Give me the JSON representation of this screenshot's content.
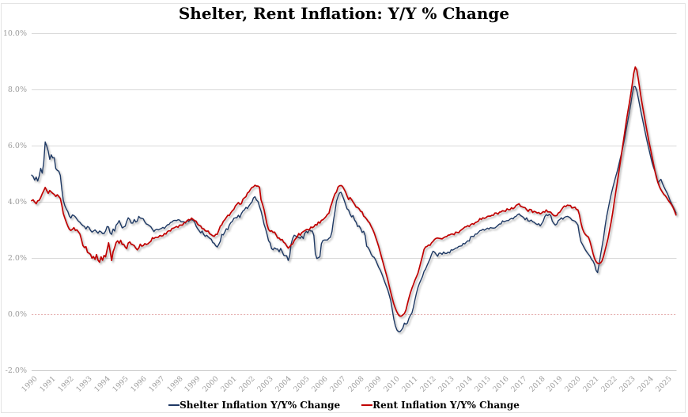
{
  "chart_data": {
    "type": "line",
    "title": "Shelter, Rent Inflation: Y/Y % Change",
    "xlabel": "",
    "ylabel": "",
    "x_unit": "year-month",
    "x_start_year": 1990,
    "x_months_per_point": 1,
    "x_end": "2025-08",
    "x_tick_labels": [
      "1990",
      "1991",
      "1992",
      "1993",
      "1994",
      "1995",
      "1996",
      "1997",
      "1998",
      "1999",
      "2000",
      "2001",
      "2002",
      "2003",
      "2004",
      "2005",
      "2006",
      "2007",
      "2008",
      "2009",
      "2010",
      "2011",
      "2012",
      "2013",
      "2014",
      "2015",
      "2016",
      "2017",
      "2018",
      "2019",
      "2020",
      "2021",
      "2022",
      "2023",
      "2024",
      "2025"
    ],
    "y_tick_labels": [
      "10.0%",
      "8.0%",
      "6.0%",
      "4.0%",
      "2.0%",
      "0.0%",
      "-2.0%"
    ],
    "y_tick_values": [
      10,
      8,
      6,
      4,
      2,
      0,
      -2
    ],
    "ylim": [
      -2,
      10
    ],
    "grid": "horizontal",
    "gridline_color": "#d9d9d9",
    "zero_line": {
      "value": 0,
      "style": "dashed",
      "color": "#e7b4b4"
    },
    "axis_line_color": "#c9c9c9",
    "tick_label_color": "#9b9b9b",
    "legend_position": "bottom-center",
    "series": [
      {
        "name": "Shelter Inflation Y/Y% Change",
        "color": "#1F3864",
        "line_width": 1.4,
        "values": [
          4.95,
          4.9,
          4.77,
          4.88,
          4.74,
          4.91,
          5.19,
          5.02,
          5.38,
          6.13,
          5.98,
          5.8,
          5.51,
          5.67,
          5.56,
          5.57,
          5.18,
          5.12,
          5.09,
          4.94,
          4.45,
          4.05,
          3.86,
          3.74,
          3.65,
          3.49,
          3.42,
          3.53,
          3.51,
          3.46,
          3.38,
          3.31,
          3.27,
          3.2,
          3.15,
          3.12,
          3.03,
          3.12,
          3.09,
          2.98,
          2.92,
          2.96,
          3.0,
          2.94,
          2.88,
          2.96,
          2.93,
          2.87,
          2.87,
          2.96,
          3.12,
          3.1,
          2.89,
          2.84,
          3.03,
          2.96,
          3.17,
          3.23,
          3.33,
          3.2,
          3.07,
          3.1,
          3.13,
          3.3,
          3.43,
          3.37,
          3.24,
          3.24,
          3.37,
          3.28,
          3.31,
          3.48,
          3.42,
          3.41,
          3.39,
          3.28,
          3.21,
          3.19,
          3.15,
          3.11,
          3.02,
          2.94,
          3.0,
          3.02,
          3.0,
          3.03,
          3.05,
          3.09,
          3.05,
          3.12,
          3.18,
          3.19,
          3.26,
          3.28,
          3.33,
          3.34,
          3.33,
          3.36,
          3.35,
          3.29,
          3.29,
          3.29,
          3.24,
          3.34,
          3.3,
          3.35,
          3.36,
          3.34,
          3.28,
          3.13,
          3.04,
          2.97,
          2.89,
          2.96,
          2.84,
          2.77,
          2.81,
          2.75,
          2.7,
          2.67,
          2.55,
          2.52,
          2.43,
          2.39,
          2.48,
          2.59,
          2.84,
          2.82,
          2.92,
          3.04,
          3.01,
          3.17,
          3.26,
          3.3,
          3.41,
          3.43,
          3.43,
          3.52,
          3.44,
          3.58,
          3.67,
          3.71,
          3.8,
          3.76,
          3.85,
          3.93,
          3.99,
          4.14,
          4.18,
          4.06,
          4.01,
          3.83,
          3.67,
          3.45,
          3.2,
          3.04,
          2.84,
          2.61,
          2.54,
          2.33,
          2.29,
          2.36,
          2.32,
          2.32,
          2.22,
          2.34,
          2.23,
          2.1,
          2.08,
          2.08,
          1.91,
          2.07,
          2.51,
          2.7,
          2.81,
          2.78,
          2.75,
          2.73,
          2.7,
          2.77,
          2.69,
          2.88,
          2.95,
          2.89,
          3.0,
          2.96,
          2.96,
          2.8,
          2.15,
          1.98,
          2.01,
          2.04,
          2.51,
          2.62,
          2.64,
          2.64,
          2.64,
          2.7,
          2.74,
          2.93,
          3.33,
          3.65,
          4.02,
          4.18,
          4.31,
          4.34,
          4.21,
          4.07,
          3.91,
          3.75,
          3.71,
          3.56,
          3.46,
          3.51,
          3.35,
          3.27,
          3.12,
          3.14,
          3.05,
          2.91,
          2.95,
          2.8,
          2.42,
          2.37,
          2.27,
          2.13,
          2.05,
          2.02,
          1.92,
          1.79,
          1.66,
          1.57,
          1.44,
          1.29,
          1.14,
          1.0,
          0.86,
          0.67,
          0.47,
          0.15,
          -0.18,
          -0.41,
          -0.56,
          -0.62,
          -0.63,
          -0.57,
          -0.49,
          -0.32,
          -0.36,
          -0.32,
          -0.15,
          -0.04,
          0.04,
          0.25,
          0.51,
          0.75,
          0.95,
          1.1,
          1.22,
          1.34,
          1.52,
          1.6,
          1.73,
          1.85,
          1.97,
          2.13,
          2.24,
          2.21,
          2.13,
          2.06,
          2.17,
          2.17,
          2.13,
          2.21,
          2.16,
          2.16,
          2.21,
          2.18,
          2.29,
          2.28,
          2.31,
          2.35,
          2.36,
          2.41,
          2.42,
          2.43,
          2.52,
          2.5,
          2.56,
          2.61,
          2.6,
          2.76,
          2.77,
          2.76,
          2.85,
          2.85,
          2.91,
          2.97,
          2.98,
          3.02,
          2.99,
          3.02,
          3.06,
          3.03,
          3.08,
          3.07,
          3.06,
          3.07,
          3.11,
          3.16,
          3.21,
          3.21,
          3.32,
          3.29,
          3.31,
          3.33,
          3.33,
          3.38,
          3.41,
          3.39,
          3.46,
          3.48,
          3.54,
          3.57,
          3.51,
          3.48,
          3.44,
          3.36,
          3.43,
          3.32,
          3.31,
          3.35,
          3.29,
          3.27,
          3.22,
          3.19,
          3.22,
          3.14,
          3.22,
          3.31,
          3.47,
          3.54,
          3.51,
          3.55,
          3.51,
          3.31,
          3.23,
          3.17,
          3.21,
          3.33,
          3.37,
          3.43,
          3.38,
          3.44,
          3.47,
          3.48,
          3.46,
          3.42,
          3.35,
          3.33,
          3.31,
          3.25,
          3.17,
          2.83,
          2.58,
          2.48,
          2.38,
          2.28,
          2.2,
          2.13,
          2.06,
          1.95,
          1.89,
          1.77,
          1.56,
          1.48,
          1.77,
          2.11,
          2.42,
          2.73,
          3.13,
          3.47,
          3.74,
          4.01,
          4.26,
          4.48,
          4.69,
          4.89,
          5.08,
          5.3,
          5.53,
          5.75,
          6.0,
          6.26,
          6.57,
          6.87,
          7.16,
          7.47,
          7.83,
          8.1,
          8.1,
          7.95,
          7.69,
          7.41,
          7.14,
          6.88,
          6.62,
          6.36,
          6.11,
          5.88,
          5.65,
          5.42,
          5.24,
          5.09,
          4.92,
          4.67,
          4.74,
          4.8,
          4.65,
          4.53,
          4.42,
          4.32,
          4.2,
          4.05,
          3.94,
          3.83,
          3.72,
          3.6
        ]
      },
      {
        "name": "Rent Inflation Y/Y% Change",
        "color": "#C00000",
        "line_width": 1.7,
        "values": [
          4.04,
          4.07,
          3.99,
          3.93,
          4.03,
          4.05,
          4.15,
          4.28,
          4.39,
          4.51,
          4.4,
          4.3,
          4.4,
          4.35,
          4.3,
          4.26,
          4.19,
          4.25,
          4.19,
          4.12,
          3.88,
          3.58,
          3.42,
          3.27,
          3.13,
          3.02,
          2.98,
          3.02,
          3.08,
          2.98,
          3.0,
          2.93,
          2.85,
          2.66,
          2.44,
          2.37,
          2.4,
          2.2,
          2.17,
          2.13,
          1.99,
          2.05,
          1.95,
          2.12,
          1.92,
          1.85,
          2.04,
          1.92,
          2.09,
          2.04,
          2.29,
          2.54,
          2.25,
          1.91,
          2.22,
          2.37,
          2.55,
          2.61,
          2.52,
          2.63,
          2.48,
          2.49,
          2.39,
          2.33,
          2.53,
          2.57,
          2.49,
          2.47,
          2.44,
          2.35,
          2.29,
          2.35,
          2.49,
          2.42,
          2.44,
          2.51,
          2.48,
          2.5,
          2.55,
          2.59,
          2.72,
          2.69,
          2.73,
          2.73,
          2.74,
          2.8,
          2.78,
          2.79,
          2.87,
          2.85,
          2.94,
          2.97,
          2.96,
          3.05,
          3.06,
          3.09,
          3.12,
          3.09,
          3.17,
          3.17,
          3.17,
          3.25,
          3.27,
          3.32,
          3.37,
          3.35,
          3.42,
          3.37,
          3.33,
          3.31,
          3.2,
          3.16,
          3.14,
          3.04,
          3.04,
          2.97,
          2.95,
          2.96,
          2.86,
          2.83,
          2.79,
          2.77,
          2.84,
          2.84,
          2.98,
          3.13,
          3.18,
          3.3,
          3.36,
          3.44,
          3.52,
          3.51,
          3.61,
          3.68,
          3.73,
          3.85,
          3.91,
          3.97,
          3.91,
          3.93,
          4.09,
          4.14,
          4.18,
          4.31,
          4.35,
          4.44,
          4.51,
          4.53,
          4.59,
          4.56,
          4.56,
          4.52,
          4.07,
          3.91,
          3.72,
          3.45,
          3.19,
          3.01,
          2.95,
          2.97,
          2.91,
          2.92,
          2.82,
          2.71,
          2.71,
          2.64,
          2.66,
          2.56,
          2.52,
          2.43,
          2.35,
          2.4,
          2.47,
          2.5,
          2.62,
          2.69,
          2.75,
          2.87,
          2.81,
          2.9,
          2.94,
          2.97,
          3.01,
          3.01,
          3.0,
          3.1,
          3.08,
          3.11,
          3.19,
          3.17,
          3.28,
          3.24,
          3.34,
          3.36,
          3.41,
          3.47,
          3.55,
          3.59,
          3.81,
          3.96,
          4.14,
          4.28,
          4.35,
          4.52,
          4.57,
          4.58,
          4.55,
          4.45,
          4.35,
          4.21,
          4.08,
          4.15,
          4.08,
          3.99,
          3.91,
          3.81,
          3.8,
          3.75,
          3.66,
          3.64,
          3.49,
          3.45,
          3.38,
          3.3,
          3.24,
          3.12,
          3.02,
          2.89,
          2.73,
          2.57,
          2.4,
          2.2,
          2.0,
          1.81,
          1.61,
          1.42,
          1.22,
          0.99,
          0.77,
          0.56,
          0.36,
          0.21,
          0.08,
          -0.02,
          -0.07,
          -0.07,
          -0.03,
          0.02,
          0.14,
          0.36,
          0.57,
          0.76,
          0.92,
          1.06,
          1.21,
          1.33,
          1.46,
          1.66,
          1.87,
          2.07,
          2.3,
          2.39,
          2.41,
          2.46,
          2.45,
          2.54,
          2.59,
          2.66,
          2.7,
          2.71,
          2.7,
          2.69,
          2.68,
          2.72,
          2.75,
          2.76,
          2.81,
          2.82,
          2.85,
          2.85,
          2.83,
          2.92,
          2.91,
          2.9,
          2.97,
          3.01,
          3.05,
          3.1,
          3.11,
          3.15,
          3.12,
          3.19,
          3.22,
          3.2,
          3.26,
          3.28,
          3.31,
          3.4,
          3.37,
          3.43,
          3.41,
          3.43,
          3.48,
          3.49,
          3.49,
          3.52,
          3.52,
          3.6,
          3.6,
          3.56,
          3.63,
          3.64,
          3.68,
          3.67,
          3.66,
          3.75,
          3.72,
          3.72,
          3.79,
          3.75,
          3.79,
          3.87,
          3.9,
          3.93,
          3.84,
          3.82,
          3.8,
          3.79,
          3.72,
          3.66,
          3.73,
          3.72,
          3.62,
          3.66,
          3.64,
          3.6,
          3.62,
          3.57,
          3.6,
          3.65,
          3.63,
          3.71,
          3.64,
          3.64,
          3.63,
          3.56,
          3.51,
          3.5,
          3.51,
          3.6,
          3.63,
          3.71,
          3.79,
          3.85,
          3.83,
          3.88,
          3.87,
          3.87,
          3.78,
          3.79,
          3.81,
          3.73,
          3.71,
          3.53,
          3.25,
          3.04,
          2.91,
          2.83,
          2.78,
          2.74,
          2.58,
          2.38,
          2.16,
          1.98,
          1.87,
          1.81,
          1.8,
          1.82,
          1.9,
          2.06,
          2.28,
          2.49,
          2.71,
          3.0,
          3.28,
          3.6,
          3.97,
          4.32,
          4.65,
          5.02,
          5.38,
          5.75,
          6.11,
          6.47,
          6.84,
          7.18,
          7.49,
          7.83,
          8.19,
          8.58,
          8.8,
          8.69,
          8.37,
          8.01,
          7.66,
          7.34,
          7.04,
          6.74,
          6.44,
          6.16,
          5.9,
          5.64,
          5.37,
          5.1,
          4.87,
          4.69,
          4.54,
          4.43,
          4.34,
          4.26,
          4.21,
          4.13,
          4.04,
          3.97,
          3.9,
          3.8,
          3.67,
          3.53
        ]
      }
    ]
  }
}
